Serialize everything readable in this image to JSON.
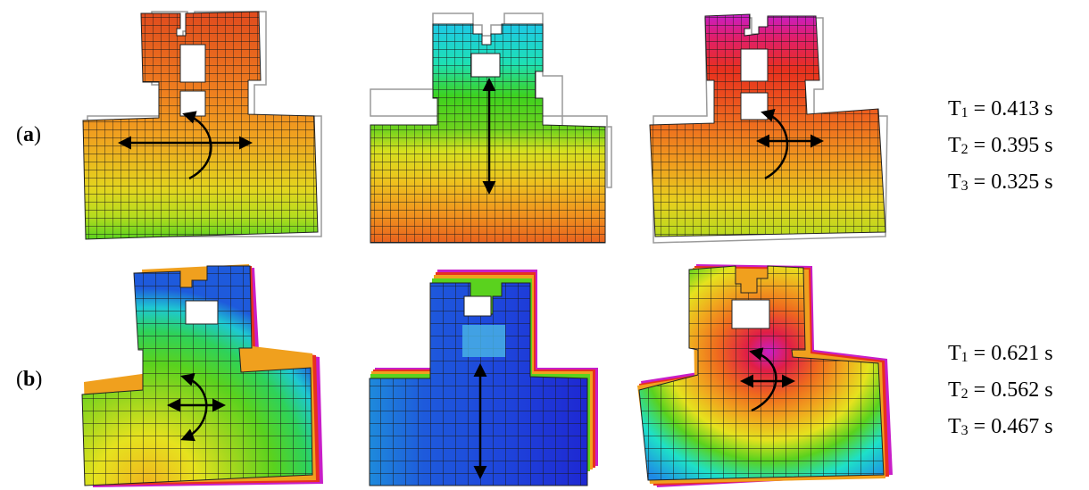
{
  "row_a": {
    "label_open": "(",
    "label_letter": "a",
    "label_close": ")",
    "periods": [
      {
        "sym": "T",
        "sub": "1",
        "rest": " = 0.413 s"
      },
      {
        "sym": "T",
        "sub": "2",
        "rest": " = 0.395 s"
      },
      {
        "sym": "T",
        "sub": "3",
        "rest": " = 0.325 s"
      }
    ]
  },
  "row_b": {
    "label_open": "(",
    "label_letter": "b",
    "label_close": ")",
    "periods": [
      {
        "sym": "T",
        "sub": "1",
        "rest": " = 0.621 s"
      },
      {
        "sym": "T",
        "sub": "2",
        "rest": " = 0.562 s"
      },
      {
        "sym": "T",
        "sub": "3",
        "rest": " = 0.467 s"
      }
    ]
  },
  "colors": {
    "red": "#e8371c",
    "orange": "#f08a1e",
    "yellow": "#e6e21e",
    "green": "#5ad21e",
    "cyan": "#1ee0e6",
    "blue": "#1e5adc",
    "dark_blue": "#1e2ad2",
    "magenta": "#c81ec8",
    "mesh": "#222222",
    "outline": "#9a9a9a"
  }
}
